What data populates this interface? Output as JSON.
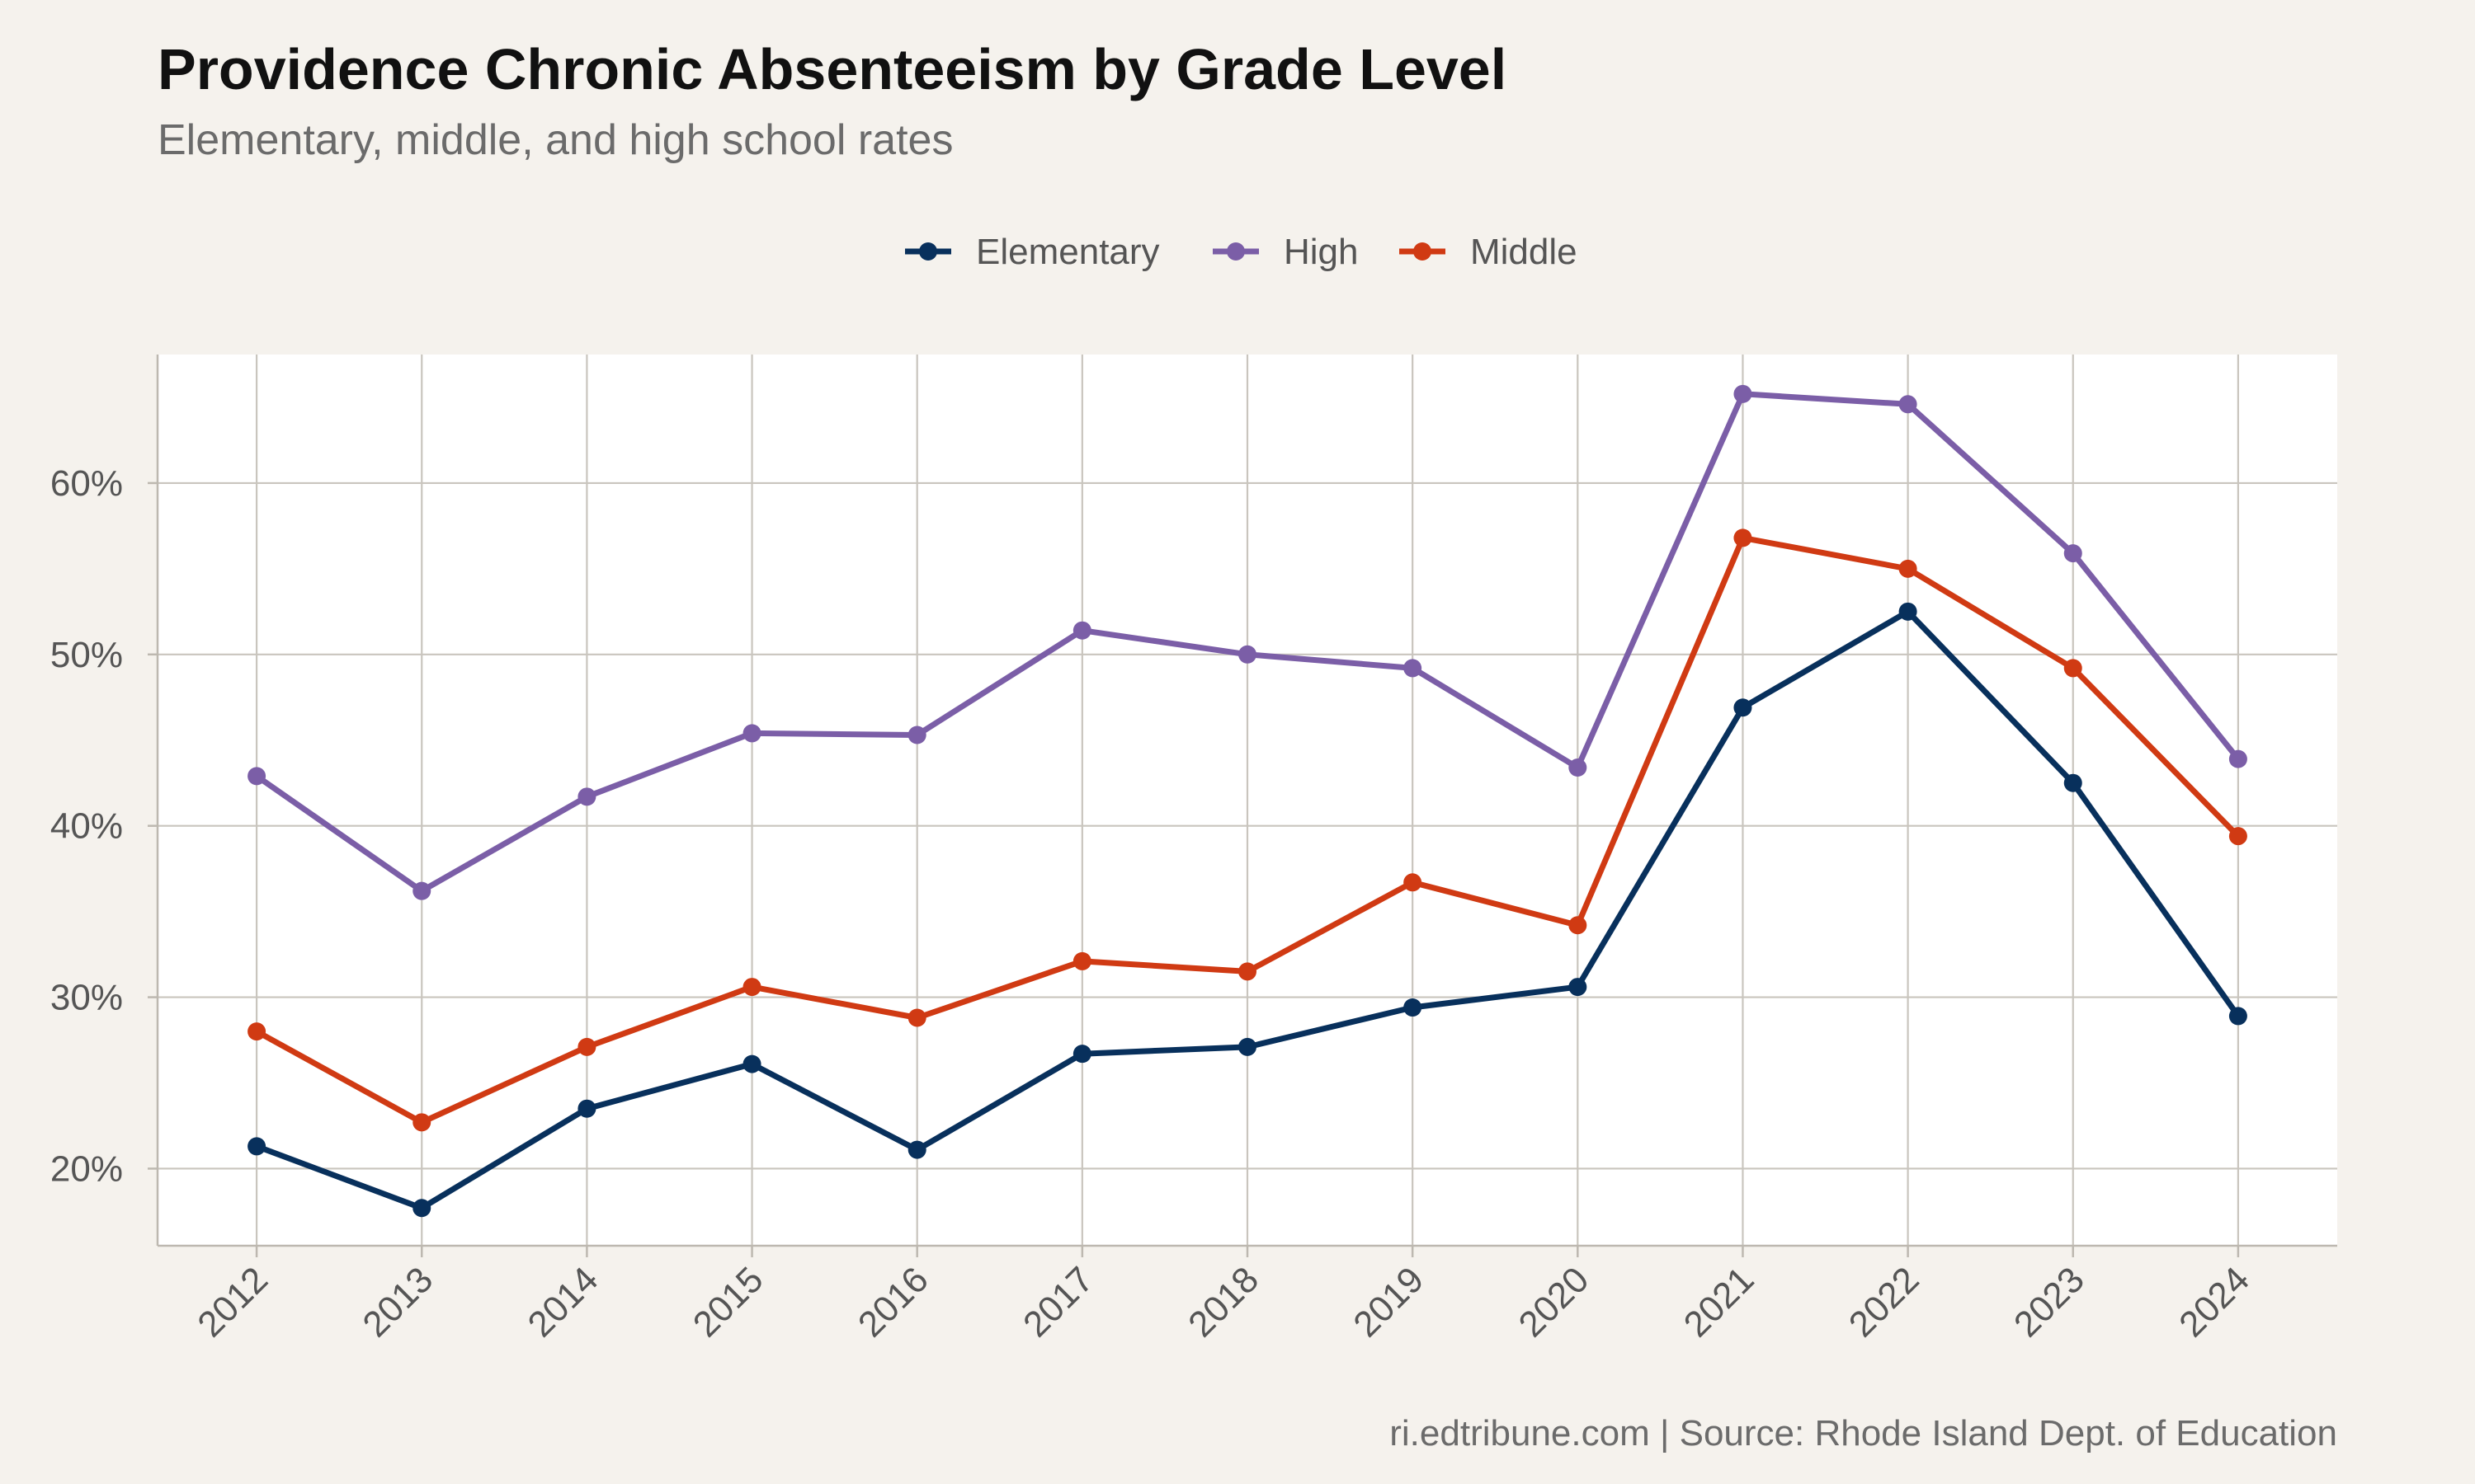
{
  "title": "Providence Chronic Absenteeism by Grade Level",
  "subtitle": "Elementary, middle, and high school rates",
  "caption": "ri.edtribune.com | Source: Rhode Island Dept. of Education",
  "chart_data": {
    "type": "line",
    "x": [
      2012,
      2013,
      2014,
      2015,
      2016,
      2017,
      2018,
      2019,
      2020,
      2021,
      2022,
      2023,
      2024
    ],
    "x_tick_labels": [
      "2012",
      "2013",
      "2014",
      "2015",
      "2016",
      "2017",
      "2018",
      "2019",
      "2020",
      "2021",
      "2022",
      "2023",
      "2024"
    ],
    "y_ticks": [
      20,
      30,
      40,
      50,
      60
    ],
    "y_tick_labels": [
      "20%",
      "30%",
      "40%",
      "50%",
      "60%"
    ],
    "ylim": [
      15.5,
      67.5
    ],
    "xlim": [
      2011.4,
      2024.6
    ],
    "legend_position": "top",
    "grid": true,
    "series": [
      {
        "name": "Elementary",
        "color": "#08305c",
        "values": [
          21.3,
          17.7,
          23.5,
          26.1,
          21.1,
          26.7,
          27.1,
          29.4,
          30.6,
          46.9,
          52.5,
          42.5,
          28.9
        ]
      },
      {
        "name": "High",
        "color": "#7b5ea7",
        "values": [
          42.9,
          36.2,
          41.7,
          45.4,
          45.3,
          51.4,
          50.0,
          49.2,
          43.4,
          65.2,
          64.6,
          55.9,
          43.9
        ]
      },
      {
        "name": "Middle",
        "color": "#d03a13",
        "values": [
          28.0,
          22.7,
          27.1,
          30.6,
          28.8,
          32.1,
          31.5,
          36.7,
          34.2,
          56.8,
          55.0,
          49.2,
          39.4
        ]
      }
    ]
  }
}
